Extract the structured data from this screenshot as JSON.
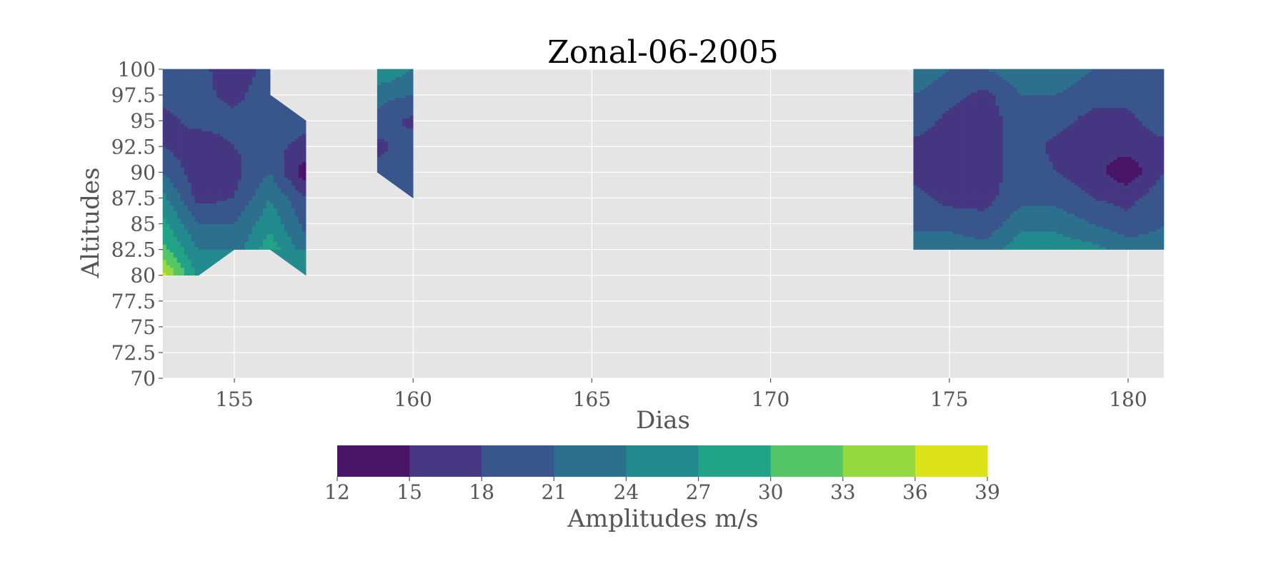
{
  "chart_data": {
    "type": "heatmap",
    "subtype": "filled-contour",
    "title": "Zonal-06-2005",
    "xlabel": "Dias",
    "ylabel": "Altitudes",
    "xlim": [
      153,
      181
    ],
    "ylim": [
      70,
      100
    ],
    "xticks": [
      155,
      160,
      165,
      170,
      175,
      180
    ],
    "yticks": [
      70,
      72.5,
      75,
      77.5,
      80,
      82.5,
      85,
      87.5,
      90,
      92.5,
      95,
      97.5,
      100
    ],
    "background": "#e5e5e5",
    "grid": true,
    "grid_color": "#ffffff",
    "colorbar": {
      "label": "Amplitudes m/s",
      "orientation": "horizontal",
      "placement": "bottom",
      "levels": [
        12,
        15,
        18,
        21,
        24,
        27,
        30,
        33,
        36,
        39
      ],
      "colors": [
        "#481567",
        "#453781",
        "#39568c",
        "#2d708e",
        "#238a8d",
        "#20a386",
        "#55c667",
        "#95d840",
        "#dce319"
      ]
    },
    "x_days": [
      153,
      154,
      155,
      156,
      157,
      159,
      160,
      174,
      175,
      176,
      177,
      178,
      179,
      180,
      181
    ],
    "y_altitudes": [
      80,
      82.5,
      85,
      87.5,
      90,
      92.5,
      95,
      97.5,
      100
    ],
    "regions": [
      {
        "days": [
          153,
          154,
          155,
          156,
          157
        ],
        "altitudes": [
          80,
          82.5,
          85,
          87.5,
          90,
          92.5,
          95,
          97.5,
          100
        ],
        "amplitudes": [
          [
            37,
            26,
            null,
            null,
            25
          ],
          [
            31,
            24,
            22,
            29,
            22
          ],
          [
            28,
            21,
            21,
            26,
            20
          ],
          [
            25,
            17,
            18,
            24,
            18
          ],
          [
            21,
            16,
            17,
            21,
            13
          ],
          [
            18,
            16,
            18,
            19,
            17
          ],
          [
            17,
            19,
            19,
            20,
            19
          ],
          [
            19,
            19,
            17,
            20,
            null
          ],
          [
            19,
            19,
            16,
            19,
            null
          ]
        ]
      },
      {
        "days": [
          159,
          160
        ],
        "altitudes": [
          87.5,
          90,
          92.5,
          95,
          97.5,
          100
        ],
        "amplitudes": [
          [
            null,
            20
          ],
          [
            19,
            20
          ],
          [
            17,
            20
          ],
          [
            20,
            17
          ],
          [
            22,
            21
          ],
          [
            27,
            24
          ]
        ]
      },
      {
        "days": [
          174,
          175,
          176,
          177,
          178,
          179,
          180,
          181
        ],
        "altitudes": [
          82.5,
          85,
          87.5,
          90,
          92.5,
          95,
          97.5,
          100
        ],
        "amplitudes": [
          [
            23,
            23,
            22,
            26,
            26,
            25,
            23,
            22
          ],
          [
            20,
            20,
            19,
            23,
            23,
            21,
            19,
            21
          ],
          [
            19,
            17,
            17,
            20,
            20,
            18,
            17,
            20
          ],
          [
            17,
            16,
            16,
            20,
            18,
            16,
            13,
            18
          ],
          [
            17,
            16,
            16,
            20,
            17,
            16,
            16,
            17
          ],
          [
            20,
            17,
            16,
            20,
            19,
            17,
            17,
            20
          ],
          [
            21,
            19,
            17,
            21,
            21,
            19,
            19,
            21
          ],
          [
            23,
            21,
            21,
            23,
            23,
            21,
            21,
            20
          ]
        ]
      }
    ]
  }
}
